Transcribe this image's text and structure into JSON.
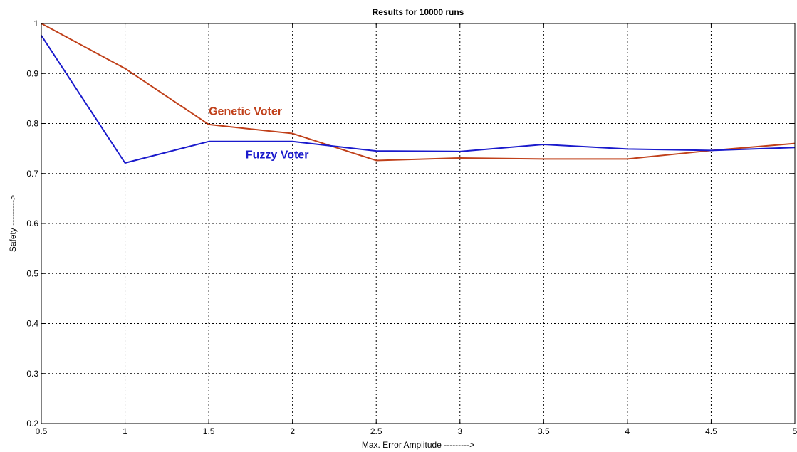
{
  "chart_data": {
    "type": "line",
    "title": "Results for 10000 runs",
    "xlabel": "Max. Error Amplitude --------->",
    "ylabel": "Safety --------->",
    "xlim": [
      0.5,
      5
    ],
    "ylim": [
      0.2,
      1
    ],
    "xticks": [
      0.5,
      1,
      1.5,
      2,
      2.5,
      3,
      3.5,
      4,
      4.5,
      5
    ],
    "xtick_labels": [
      "0.5",
      "1",
      "1.5",
      "2",
      "2.5",
      "3",
      "3.5",
      "4",
      "4.5",
      "5"
    ],
    "yticks": [
      0.2,
      0.3,
      0.4,
      0.5,
      0.6,
      0.7,
      0.8,
      0.9,
      1
    ],
    "ytick_labels": [
      "0.2",
      "0.3",
      "0.4",
      "0.5",
      "0.6",
      "0.7",
      "0.8",
      "0.9",
      "1"
    ],
    "grid": true,
    "x": [
      0.5,
      1,
      1.5,
      2,
      2.5,
      3,
      3.5,
      4,
      4.5,
      5
    ],
    "series": [
      {
        "name": "Genetic Voter",
        "color": "#c0401a",
        "values": [
          1.0,
          0.91,
          0.798,
          0.78,
          0.726,
          0.731,
          0.729,
          0.729,
          0.746,
          0.76
        ]
      },
      {
        "name": "Fuzzy Voter",
        "color": "#1a1acc",
        "values": [
          0.976,
          0.721,
          0.764,
          0.764,
          0.745,
          0.744,
          0.758,
          0.749,
          0.746,
          0.752
        ]
      }
    ],
    "annotations": [
      {
        "text": "Genetic Voter",
        "x": 1.5,
        "y": 0.817,
        "color": "#c0401a"
      },
      {
        "text": "Fuzzy Voter",
        "x": 1.72,
        "y": 0.73,
        "color": "#1a1acc"
      }
    ]
  }
}
